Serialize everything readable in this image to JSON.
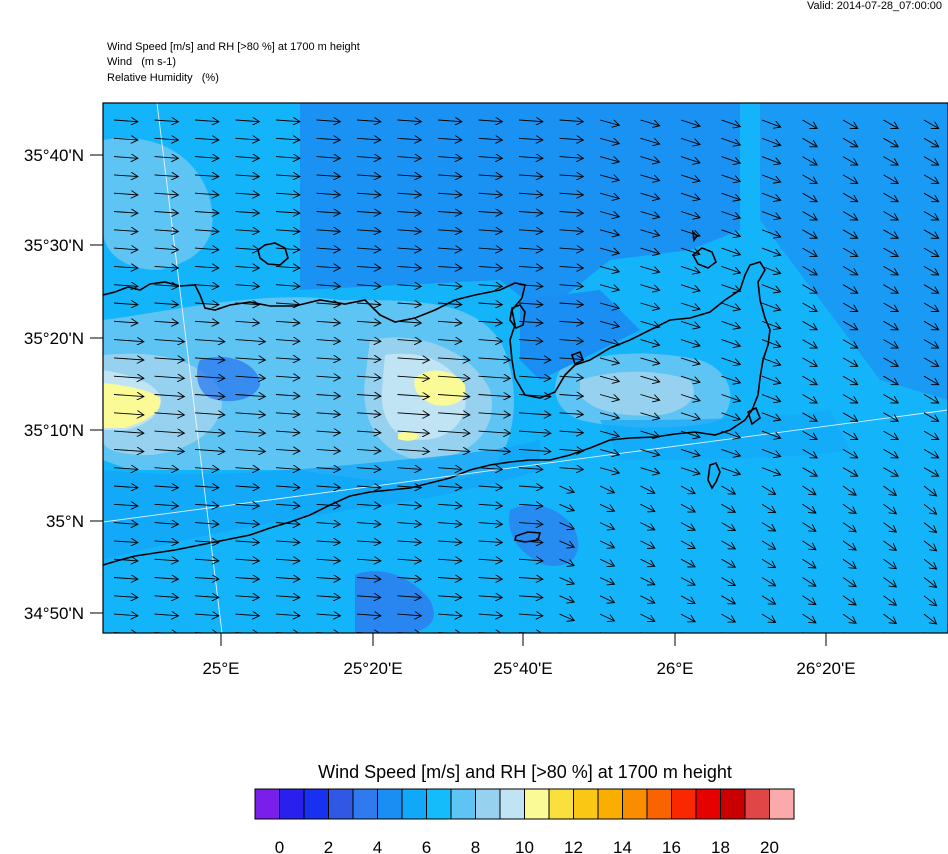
{
  "valid_time": "Valid: 2014-07-28_07:00:00",
  "header": {
    "line1": "Wind Speed [m/s] and RH [>80 %] at 1700 m height",
    "line2": "Wind   (m s-1)",
    "line3": "Relative Humidity   (%)"
  },
  "map": {
    "lat_labels": [
      "35°40'N",
      "35°30'N",
      "35°20'N",
      "35°10'N",
      "35°N",
      "34°50'N"
    ],
    "lon_labels": [
      "25°E",
      "25°20'E",
      "25°40'E",
      "26°E",
      "26°20'E"
    ],
    "ocean_base_color": "#14b4fa",
    "land_color": "#1a96f0"
  },
  "colorbar": {
    "title": "Wind Speed [m/s] and RH [>80 %] at 1700 m height",
    "colors": [
      "#7a1eeb",
      "#2a20ee",
      "#1830f0",
      "#3058e4",
      "#2e7aee",
      "#1a8ef2",
      "#12a8f8",
      "#14bcfc",
      "#5ec4f4",
      "#96d2f0",
      "#c0e4f4",
      "#fafa96",
      "#fae03c",
      "#fac814",
      "#faae00",
      "#fa8c00",
      "#fa6400",
      "#fa2800",
      "#e60000",
      "#c80000",
      "#e04646",
      "#faaaaa"
    ],
    "tick_labels": [
      "0",
      "2",
      "4",
      "6",
      "8",
      "10",
      "12",
      "14",
      "16",
      "18",
      "20"
    ]
  }
}
